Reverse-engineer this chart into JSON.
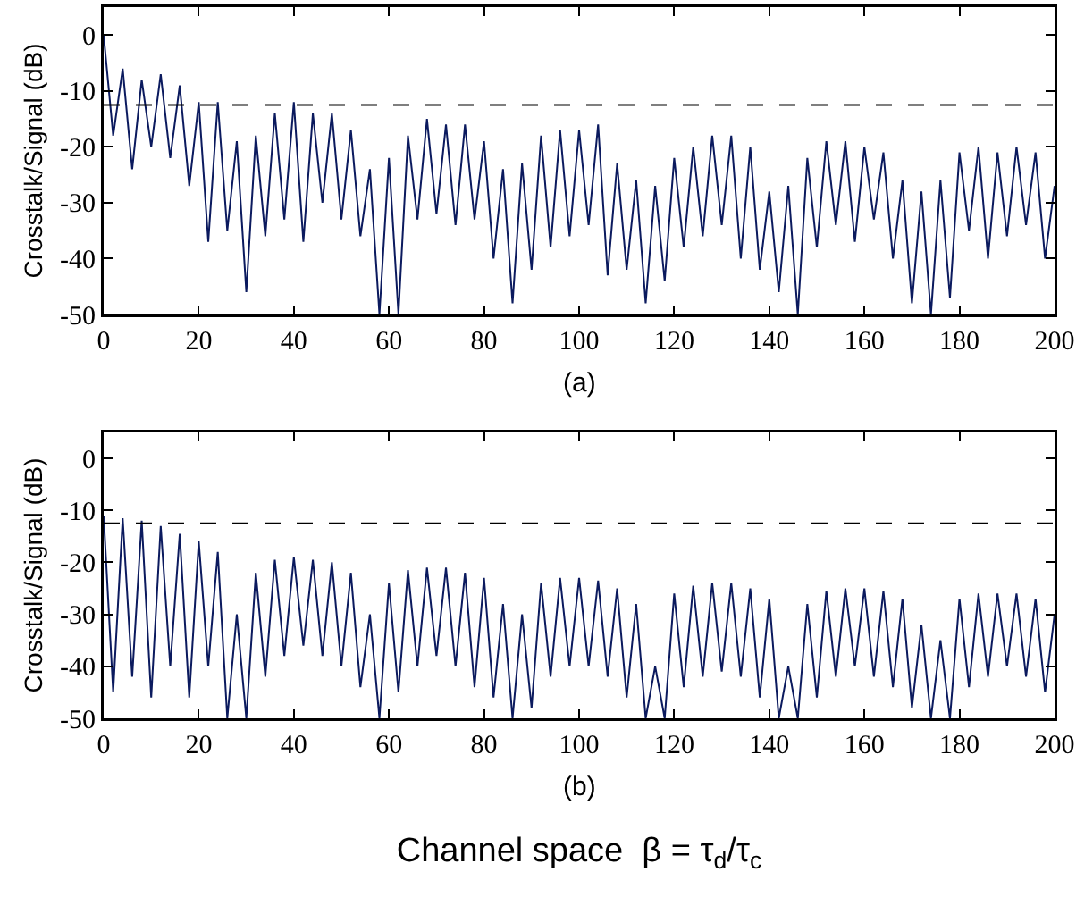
{
  "chart_data": [
    {
      "type": "line",
      "ylabel": "Crosstalk/Signal (dB)",
      "annotations": [
        "(a)"
      ],
      "x": [
        0,
        2,
        4,
        6,
        8,
        10,
        12,
        14,
        16,
        18,
        20,
        22,
        24,
        26,
        28,
        30,
        32,
        34,
        36,
        38,
        40,
        42,
        44,
        46,
        48,
        50,
        52,
        54,
        56,
        58,
        60,
        62,
        64,
        66,
        68,
        70,
        72,
        74,
        76,
        78,
        80,
        82,
        84,
        86,
        88,
        90,
        92,
        94,
        96,
        98,
        100,
        102,
        104,
        106,
        108,
        110,
        112,
        114,
        116,
        118,
        120,
        122,
        124,
        126,
        128,
        130,
        132,
        134,
        136,
        138,
        140,
        142,
        144,
        146,
        148,
        150,
        152,
        154,
        156,
        158,
        160,
        162,
        164,
        166,
        168,
        170,
        172,
        174,
        176,
        178,
        180,
        182,
        184,
        186,
        188,
        190,
        192,
        194,
        196,
        198,
        200
      ],
      "series": [
        {
          "color": "#0b1a5e",
          "values": [
            0,
            -18,
            -6,
            -24,
            -8,
            -20,
            -7,
            -22,
            -9,
            -27,
            -12,
            -37,
            -12,
            -35,
            -19,
            -46,
            -18,
            -36,
            -14,
            -33,
            -12,
            -37,
            -14,
            -30,
            -14,
            -33,
            -17,
            -36,
            -24,
            -50,
            -22,
            -50,
            -18,
            -33,
            -15,
            -32,
            -16,
            -34,
            -16,
            -33,
            -19,
            -40,
            -24,
            -48,
            -23,
            -42,
            -18,
            -38,
            -17,
            -36,
            -17,
            -34,
            -16,
            -43,
            -23,
            -42,
            -26,
            -48,
            -27,
            -44,
            -22,
            -38,
            -20,
            -36,
            -18,
            -34,
            -18,
            -40,
            -20,
            -42,
            -28,
            -46,
            -27,
            -50,
            -22,
            -38,
            -19,
            -34,
            -19,
            -37,
            -20,
            -33,
            -21,
            -40,
            -26,
            -48,
            -28,
            -50,
            -26,
            -47,
            -21,
            -35,
            -20,
            -40,
            -21,
            -36,
            -20,
            -34,
            -21,
            -40,
            -27
          ]
        }
      ],
      "xlim": [
        0,
        200
      ],
      "xticks": [
        0,
        20,
        40,
        60,
        80,
        100,
        120,
        140,
        160,
        180,
        200
      ],
      "ylim": [
        -50,
        5
      ],
      "yticks": [
        -50,
        -40,
        -30,
        -20,
        -10,
        0
      ],
      "ref_lines": [
        {
          "axis": "y",
          "value": -12.5,
          "color": "#000000",
          "line_style": "dashed"
        }
      ],
      "grid": false
    },
    {
      "type": "line",
      "ylabel": "Crosstalk/Signal (dB)",
      "xlabel": "Channel space  β = τ$_{d}$/τ$_{c}$",
      "annotations": [
        "(b)"
      ],
      "x": [
        0,
        2,
        4,
        6,
        8,
        10,
        12,
        14,
        16,
        18,
        20,
        22,
        24,
        26,
        28,
        30,
        32,
        34,
        36,
        38,
        40,
        42,
        44,
        46,
        48,
        50,
        52,
        54,
        56,
        58,
        60,
        62,
        64,
        66,
        68,
        70,
        72,
        74,
        76,
        78,
        80,
        82,
        84,
        86,
        88,
        90,
        92,
        94,
        96,
        98,
        100,
        102,
        104,
        106,
        108,
        110,
        112,
        114,
        116,
        118,
        120,
        122,
        124,
        126,
        128,
        130,
        132,
        134,
        136,
        138,
        140,
        142,
        144,
        146,
        148,
        150,
        152,
        154,
        156,
        158,
        160,
        162,
        164,
        166,
        168,
        170,
        172,
        174,
        176,
        178,
        180,
        182,
        184,
        186,
        188,
        190,
        192,
        194,
        196,
        198,
        200
      ],
      "series": [
        {
          "color": "#0b1a5e",
          "values": [
            -11,
            -45,
            -11.5,
            -42,
            -12,
            -46,
            -13,
            -40,
            -14.5,
            -46,
            -16,
            -40,
            -18,
            -50,
            -30,
            -50,
            -22,
            -42,
            -19.5,
            -38,
            -19,
            -36,
            -19.5,
            -38,
            -20,
            -40,
            -22,
            -44,
            -30,
            -50,
            -24,
            -45,
            -21.5,
            -40,
            -21,
            -38,
            -21,
            -40,
            -22,
            -44,
            -23,
            -46,
            -28,
            -50,
            -30,
            -48,
            -24,
            -42,
            -23,
            -40,
            -23,
            -40,
            -23.5,
            -42,
            -25,
            -46,
            -28,
            -50,
            -40,
            -50,
            -26,
            -44,
            -24.5,
            -42,
            -24,
            -41,
            -24,
            -42,
            -25,
            -46,
            -27,
            -50,
            -40,
            -50,
            -28,
            -46,
            -25.5,
            -42,
            -25,
            -40,
            -25,
            -42,
            -25.5,
            -44,
            -27,
            -48,
            -32,
            -50,
            -35,
            -50,
            -27,
            -44,
            -26,
            -42,
            -26,
            -40,
            -26,
            -42,
            -27,
            -45,
            -30
          ]
        }
      ],
      "xlim": [
        0,
        200
      ],
      "xticks": [
        0,
        20,
        40,
        60,
        80,
        100,
        120,
        140,
        160,
        180,
        200
      ],
      "ylim": [
        -50,
        5
      ],
      "yticks": [
        -50,
        -40,
        -30,
        -20,
        -10,
        0
      ],
      "ref_lines": [
        {
          "axis": "y",
          "value": -12.5,
          "color": "#000000",
          "line_style": "dashed"
        }
      ],
      "grid": false
    }
  ]
}
